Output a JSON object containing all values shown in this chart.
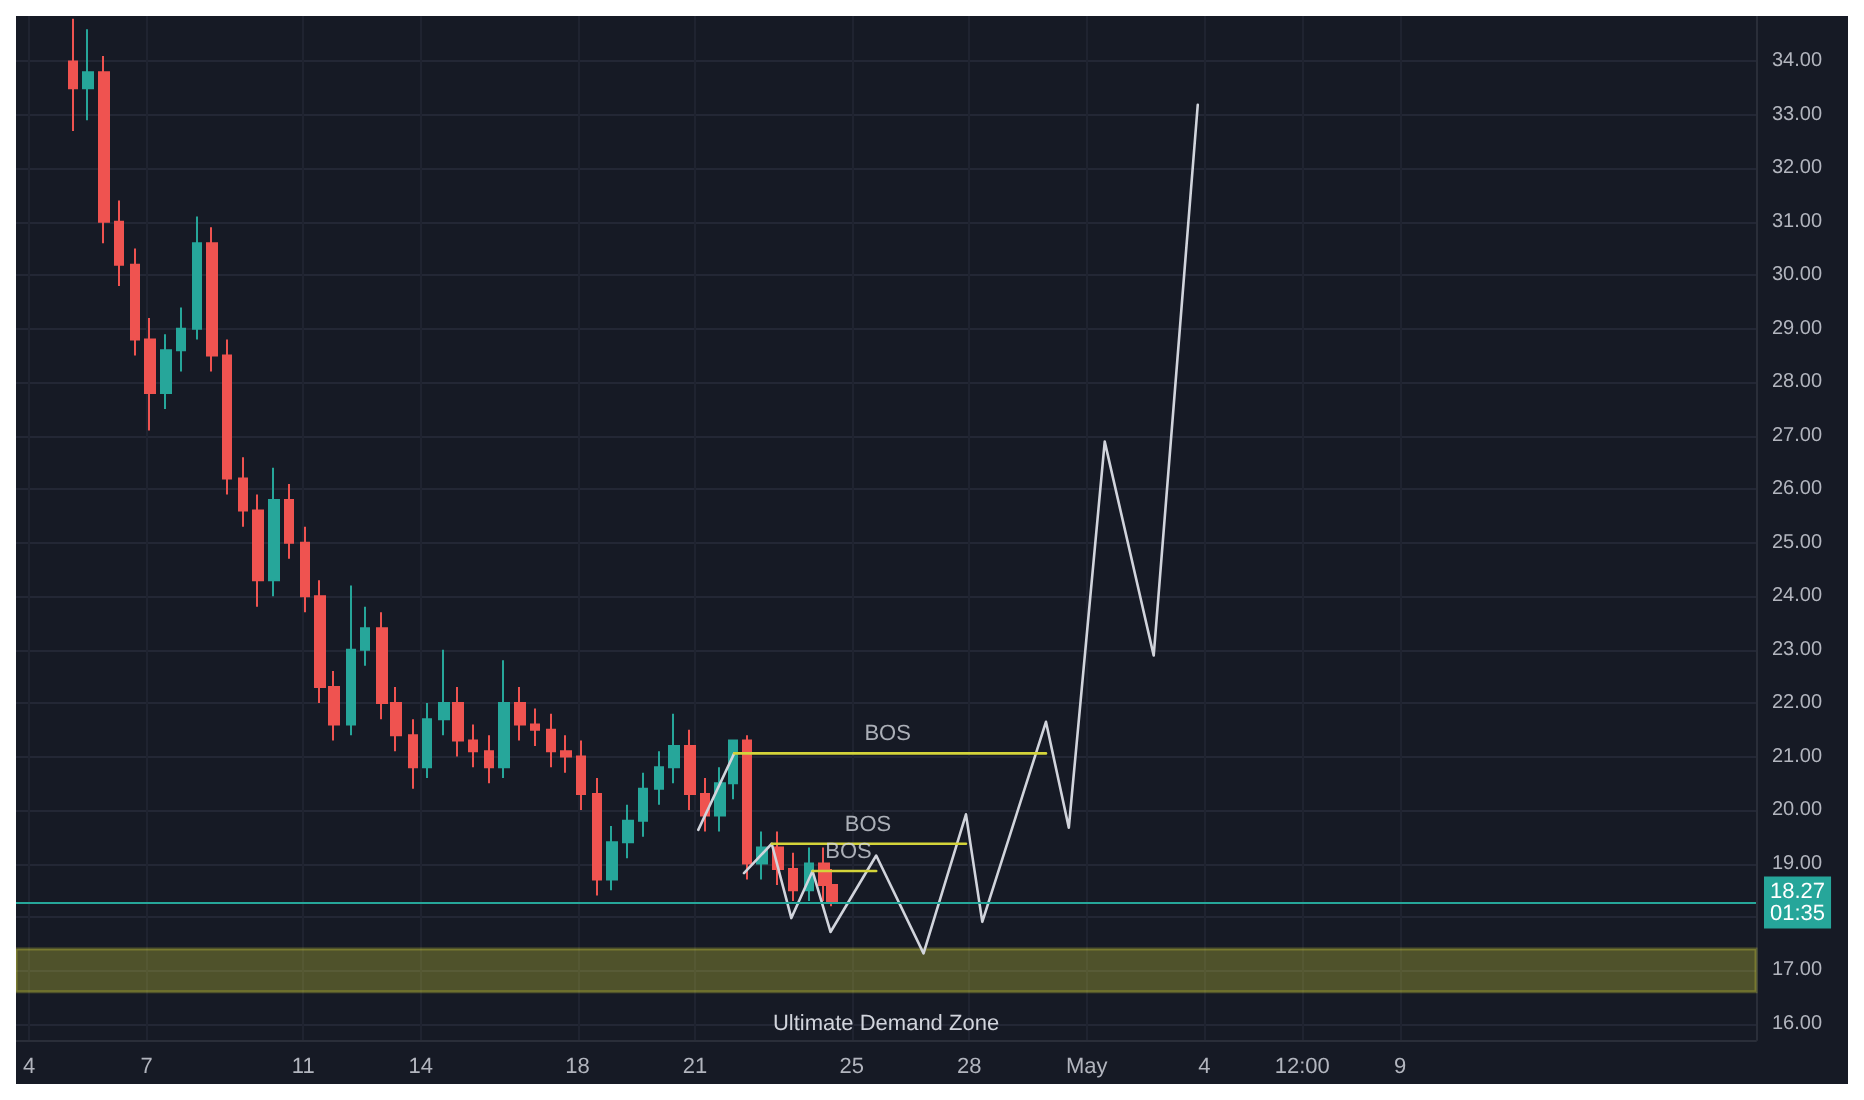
{
  "chart_data": {
    "type": "candlestick",
    "x": [
      "--04-05T03:00",
      "--04-05T12:00",
      "--04-05T22:00",
      "--04-06T07:00",
      "--04-06T17:00",
      "--04-07T02:00",
      "--04-07T12:00",
      "--04-07T21:00",
      "--04-08T07:00",
      "--04-08T16:00",
      "--04-09T01:00",
      "--04-09T11:00",
      "--04-09T20:00",
      "--04-10T06:00",
      "--04-10T15:00",
      "--04-11T01:00",
      "--04-11T10:00",
      "--04-11T19:00",
      "--04-12T05:00",
      "--04-12T14:00",
      "--04-13T00:00",
      "--04-13T09:00",
      "--04-13T19:00",
      "--04-14T04:00",
      "--04-14T14:00",
      "--04-14T23:00",
      "--04-15T08:00",
      "--04-15T18:00",
      "--04-16T03:00",
      "--04-16T13:00",
      "--04-16T22:00",
      "--04-17T08:00",
      "--04-17T17:00",
      "--04-18T02:00",
      "--04-18T12:00",
      "--04-18T21:00",
      "--04-19T07:00",
      "--04-19T16:00",
      "--04-20T02:00",
      "--04-20T11:00",
      "--04-20T21:00",
      "--04-21T06:00",
      "--04-21T15:00",
      "--04-21T23:00",
      "--04-22T08:00",
      "--04-22T17:00",
      "--04-23T03:00",
      "--04-23T12:00",
      "--04-23T22:00",
      "--04-24T07:00",
      "--04-24T12:00"
    ],
    "ohlc": [
      [
        34.0,
        34.8,
        32.7,
        33.5
      ],
      [
        33.5,
        34.6,
        32.9,
        33.8
      ],
      [
        33.8,
        34.1,
        30.6,
        31.0
      ],
      [
        31.0,
        31.4,
        29.8,
        30.2
      ],
      [
        30.2,
        30.5,
        28.5,
        28.8
      ],
      [
        28.8,
        29.2,
        27.1,
        27.8
      ],
      [
        27.8,
        28.9,
        27.5,
        28.6
      ],
      [
        28.6,
        29.4,
        28.2,
        29.0
      ],
      [
        29.0,
        31.1,
        28.8,
        30.6
      ],
      [
        30.6,
        30.9,
        28.2,
        28.5
      ],
      [
        28.5,
        28.8,
        25.9,
        26.2
      ],
      [
        26.2,
        26.6,
        25.3,
        25.6
      ],
      [
        25.6,
        25.9,
        23.8,
        24.3
      ],
      [
        24.3,
        26.4,
        24.0,
        25.8
      ],
      [
        25.8,
        26.1,
        24.7,
        25.0
      ],
      [
        25.0,
        25.3,
        23.7,
        24.0
      ],
      [
        24.0,
        24.3,
        22.0,
        22.3
      ],
      [
        22.3,
        22.6,
        21.3,
        21.6
      ],
      [
        21.6,
        24.2,
        21.4,
        23.0
      ],
      [
        23.0,
        23.8,
        22.7,
        23.4
      ],
      [
        23.4,
        23.7,
        21.7,
        22.0
      ],
      [
        22.0,
        22.3,
        21.1,
        21.4
      ],
      [
        21.4,
        21.7,
        20.4,
        20.8
      ],
      [
        20.8,
        22.0,
        20.6,
        21.7
      ],
      [
        21.7,
        23.0,
        21.4,
        22.0
      ],
      [
        22.0,
        22.3,
        21.0,
        21.3
      ],
      [
        21.3,
        21.6,
        20.8,
        21.1
      ],
      [
        21.1,
        21.4,
        20.5,
        20.8
      ],
      [
        20.8,
        22.8,
        20.6,
        22.0
      ],
      [
        22.0,
        22.3,
        21.3,
        21.6
      ],
      [
        21.6,
        21.9,
        21.2,
        21.5
      ],
      [
        21.5,
        21.8,
        20.8,
        21.1
      ],
      [
        21.1,
        21.4,
        20.7,
        21.0
      ],
      [
        21.0,
        21.3,
        20.0,
        20.3
      ],
      [
        20.3,
        20.6,
        18.4,
        18.7
      ],
      [
        18.7,
        19.7,
        18.5,
        19.4
      ],
      [
        19.4,
        20.1,
        19.1,
        19.8
      ],
      [
        19.8,
        20.7,
        19.5,
        20.4
      ],
      [
        20.4,
        21.1,
        20.1,
        20.8
      ],
      [
        20.8,
        21.8,
        20.5,
        21.2
      ],
      [
        21.2,
        21.5,
        20.0,
        20.3
      ],
      [
        20.3,
        20.6,
        19.6,
        19.9
      ],
      [
        19.9,
        20.8,
        19.6,
        20.5
      ],
      [
        20.5,
        21.3,
        20.2,
        21.3
      ],
      [
        21.3,
        21.4,
        18.7,
        19.0
      ],
      [
        19.0,
        19.6,
        18.7,
        19.3
      ],
      [
        19.3,
        19.6,
        18.6,
        18.9
      ],
      [
        18.9,
        19.2,
        18.3,
        18.5
      ],
      [
        18.5,
        19.3,
        18.3,
        19.0
      ],
      [
        19.0,
        19.3,
        18.3,
        18.6
      ],
      [
        18.6,
        18.9,
        18.2,
        18.27
      ]
    ],
    "colors": [
      "#ef5350",
      "#26a69a",
      "#ef5350",
      "#ef5350",
      "#ef5350",
      "#ef5350",
      "#26a69a",
      "#26a69a",
      "#26a69a",
      "#ef5350",
      "#ef5350",
      "#ef5350",
      "#ef5350",
      "#26a69a",
      "#ef5350",
      "#ef5350",
      "#ef5350",
      "#ef5350",
      "#26a69a",
      "#26a69a",
      "#ef5350",
      "#ef5350",
      "#ef5350",
      "#26a69a",
      "#26a69a",
      "#ef5350",
      "#ef5350",
      "#ef5350",
      "#26a69a",
      "#ef5350",
      "#ef5350",
      "#ef5350",
      "#ef5350",
      "#ef5350",
      "#ef5350",
      "#26a69a",
      "#26a69a",
      "#26a69a",
      "#26a69a",
      "#26a69a",
      "#ef5350",
      "#ef5350",
      "#26a69a",
      "#26a69a",
      "#ef5350",
      "#26a69a",
      "#ef5350",
      "#ef5350",
      "#26a69a",
      "#ef5350",
      "#ef5350"
    ],
    "series": [
      {
        "type": "line",
        "color": "#d1d4dc",
        "x": [
          "--04-21T02:00",
          "--04-22T00:00"
        ],
        "values": [
          19.63,
          21.06
        ]
      },
      {
        "type": "line",
        "color": "#d1d4dc",
        "x": [
          "--04-22T06:00",
          "--04-22T23:00",
          "--04-23T11:00",
          "--04-24T00:00",
          "--04-24T11:00",
          "--04-25T15:00",
          "--04-26T20:00",
          "--04-27T22:00",
          "--04-28T08:00",
          "--04-29T23:00",
          "--04-30T13:00",
          "--05-01T11:00",
          "--05-02T17:00",
          "--05-03T20:00"
        ],
        "values": [
          18.82,
          19.37,
          17.98,
          18.86,
          17.72,
          19.15,
          17.32,
          19.92,
          17.91,
          21.65,
          19.67,
          26.89,
          22.89,
          33.19
        ]
      },
      {
        "type": "line",
        "color": "#d4d43a",
        "x": [
          "--04-22T00:00",
          "--04-29T23:00"
        ],
        "values": [
          21.06,
          21.06
        ]
      },
      {
        "type": "line",
        "color": "#d4d43a",
        "x": [
          "--04-22T23:00",
          "--04-27T22:00"
        ],
        "values": [
          19.37,
          19.37
        ]
      },
      {
        "type": "line",
        "color": "#d4d43a",
        "x": [
          "--04-24T00:00",
          "--04-25T15:00"
        ],
        "values": [
          18.86,
          18.86
        ]
      }
    ],
    "annotations": [
      {
        "text": "BOS",
        "x": "--04-25T22:00",
        "y": 21.06
      },
      {
        "text": "BOS",
        "x": "--04-25T10:00",
        "y": 19.37
      },
      {
        "text": "BOS",
        "x": "--04-24T22:00",
        "y": 18.86
      },
      "01:35"
    ],
    "ref_lines": [
      {
        "axis": "y",
        "value": 18.27,
        "label": "18.27",
        "color": "#26a69a"
      }
    ],
    "bands": [
      {
        "axis": "y",
        "from": 16.6,
        "to": 17.4,
        "label": "Ultimate Demand Zone",
        "color": "#d4d43a"
      }
    ],
    "xlim": [
      "--04-03T16:00",
      "--05-18T02:00"
    ],
    "xticks": [
      {
        "value": "--04-04",
        "label": "4"
      },
      {
        "value": "--04-07",
        "label": "7"
      },
      {
        "value": "--04-11",
        "label": "11"
      },
      {
        "value": "--04-14",
        "label": "14"
      },
      {
        "value": "--04-18",
        "label": "18"
      },
      {
        "value": "--04-21",
        "label": "21"
      },
      {
        "value": "--04-25",
        "label": "25"
      },
      {
        "value": "--04-28",
        "label": "28"
      },
      {
        "value": "--05-01",
        "label": "May"
      },
      {
        "value": "--05-04",
        "label": "4"
      },
      {
        "value": "--05-06T12:00",
        "label": "12:00"
      },
      {
        "value": "--05-09",
        "label": "9"
      }
    ],
    "ylim": [
      15.7,
      34.85
    ],
    "yticks": [
      {
        "value": 16,
        "label": "16.00"
      },
      {
        "value": 17,
        "label": "17.00"
      },
      {
        "value": 18,
        "label": null
      },
      {
        "value": 19,
        "label": "19.00"
      },
      {
        "value": 20,
        "label": "20.00"
      },
      {
        "value": 21,
        "label": "21.00"
      },
      {
        "value": 22,
        "label": "22.00"
      },
      {
        "value": 23,
        "label": "23.00"
      },
      {
        "value": 24,
        "label": "24.00"
      },
      {
        "value": 25,
        "label": "25.00"
      },
      {
        "value": 26,
        "label": "26.00"
      },
      {
        "value": 27,
        "label": "27.00"
      },
      {
        "value": 28,
        "label": "28.00"
      },
      {
        "value": 29,
        "label": "29.00"
      },
      {
        "value": 30,
        "label": "30.00"
      },
      {
        "value": 31,
        "label": "31.00"
      },
      {
        "value": 32,
        "label": "32.00"
      },
      {
        "value": 33,
        "label": "33.00"
      },
      {
        "value": 34,
        "label": "34.00"
      }
    ],
    "grid": true,
    "marker": "none",
    "line_style": "solid"
  }
}
